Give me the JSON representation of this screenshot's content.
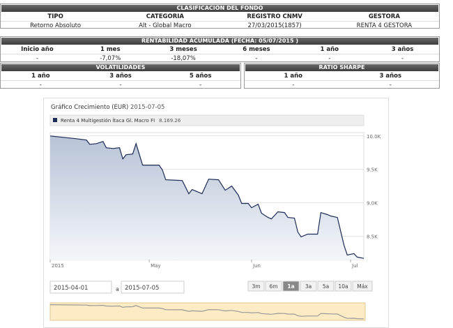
{
  "clasificacion": {
    "title": "CLASIFICACIÓN DEL FONDO",
    "headers": [
      "TIPO",
      "CATEGORIA",
      "REGISTRO CNMV",
      "GESTORA"
    ],
    "rows": [
      [
        "Retorno Absoluto",
        "Alt - Global Macro",
        "27/03/2015(1857)",
        "RENTA 4 GESTORA"
      ]
    ]
  },
  "rentabilidad": {
    "title": "RENTABILIDAD ACUMULADA (FECHA: 05/07/2015 )",
    "headers": [
      "Inicio año",
      "1 mes",
      "3 meses",
      "6 meses",
      "1 año",
      "3 años"
    ],
    "rows": [
      [
        "-",
        "-7,07%",
        "-18,07%",
        "-",
        "-",
        "-"
      ]
    ]
  },
  "volatilidades": {
    "title": "VOLATILIDADES",
    "headers": [
      "1 año",
      "3 años",
      "5 años"
    ],
    "rows": [
      [
        "-",
        "-",
        "-"
      ]
    ]
  },
  "ratio_sharpe": {
    "title": "RATIO SHARPE",
    "headers": [
      "1 año",
      "3 años"
    ],
    "rows": [
      [
        "-",
        "-"
      ]
    ]
  },
  "chart_data": {
    "type": "line",
    "title": "Gráfico Crecimiento (EUR)",
    "date": "2015-07-05",
    "x": [
      "2015-04-01",
      "2015-04-09",
      "2015-04-12",
      "2015-04-13",
      "2015-04-15",
      "2015-04-17",
      "2015-04-18",
      "2015-04-20",
      "2015-04-22",
      "2015-04-23",
      "2015-04-24",
      "2015-04-26",
      "2015-04-27",
      "2015-04-29",
      "2015-05-04",
      "2015-05-05",
      "2015-05-06",
      "2015-05-11",
      "2015-05-13",
      "2015-05-14",
      "2015-05-17",
      "2015-05-19",
      "2015-05-22",
      "2015-05-24",
      "2015-05-26",
      "2015-05-28",
      "2015-05-29",
      "2015-05-31",
      "2015-06-01",
      "2015-06-03",
      "2015-06-04",
      "2015-06-06",
      "2015-06-07",
      "2015-06-09",
      "2015-06-11",
      "2015-06-12",
      "2015-06-14",
      "2015-06-15",
      "2015-06-16",
      "2015-06-18",
      "2015-06-21",
      "2015-06-22",
      "2015-06-24",
      "2015-06-25",
      "2015-06-27",
      "2015-06-29",
      "2015-06-30",
      "2015-07-02",
      "2015-07-03",
      "2015-07-05"
    ],
    "series": [
      {
        "name": "Renta 4 Multigestión Ítaca Gl. Macro FI",
        "color": "#1c2a55",
        "legend_value": "8.169.26",
        "values": [
          10000,
          9958,
          9938,
          9875,
          9885,
          9917,
          9823,
          9812,
          9823,
          9656,
          9719,
          9729,
          9885,
          9563,
          9563,
          9490,
          9344,
          9333,
          9135,
          9198,
          9135,
          9354,
          9344,
          9188,
          9250,
          9115,
          8990,
          8990,
          8927,
          8979,
          8844,
          8781,
          8760,
          8865,
          8854,
          8781,
          8771,
          8563,
          8490,
          8531,
          8531,
          8854,
          8823,
          8802,
          8781,
          8365,
          8219,
          8240,
          8188,
          8169.26
        ]
      }
    ],
    "xlim": [
      "2015-04-01",
      "2015-07-05"
    ],
    "xticks": [
      {
        "value": "2015-04-01",
        "label": "2015"
      },
      {
        "value": "2015-05-01",
        "label": "May"
      },
      {
        "value": "2015-06-01",
        "label": "Jun"
      },
      {
        "value": "2015-07-01",
        "label": "Jul"
      }
    ],
    "ylim": [
      8150,
      10050
    ],
    "yticks": [
      {
        "value": 8500,
        "label": "8.5K"
      },
      {
        "value": 9000,
        "label": "9.0K"
      },
      {
        "value": 9500,
        "label": "9.5K"
      },
      {
        "value": 10000,
        "label": "10.0K"
      }
    ],
    "grid": true
  },
  "range_selector": {
    "from": "2015-04-01",
    "separator": "a",
    "to": "2015-07-05",
    "buttons": [
      "3m",
      "6m",
      "1a",
      "3a",
      "5a",
      "10a",
      "Máx"
    ],
    "selected": 2
  }
}
